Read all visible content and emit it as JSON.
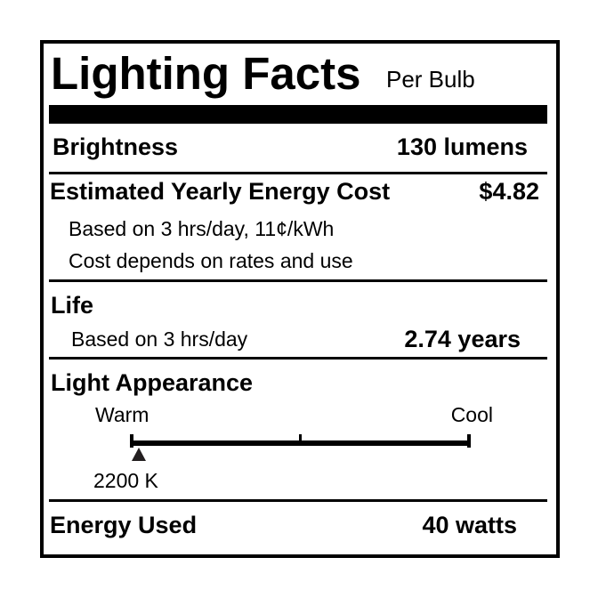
{
  "title": "Lighting Facts",
  "subtitle": "Per Bulb",
  "brightness": {
    "label": "Brightness",
    "value": "130 lumens"
  },
  "energy_cost": {
    "label": "Estimated Yearly Energy Cost",
    "value": "$4.82",
    "note1": "Based on 3 hrs/day, 11¢/kWh",
    "note2": "Cost depends on rates and use"
  },
  "life": {
    "label": "Life",
    "note": "Based on 3 hrs/day",
    "value": "2.74 years"
  },
  "appearance": {
    "label": "Light Appearance",
    "warm_label": "Warm",
    "cool_label": "Cool",
    "value": "2200 K",
    "scale_position": 0.02,
    "marker_icon": "triangle-up"
  },
  "energy_used": {
    "label": "Energy Used",
    "value": "40 watts"
  }
}
